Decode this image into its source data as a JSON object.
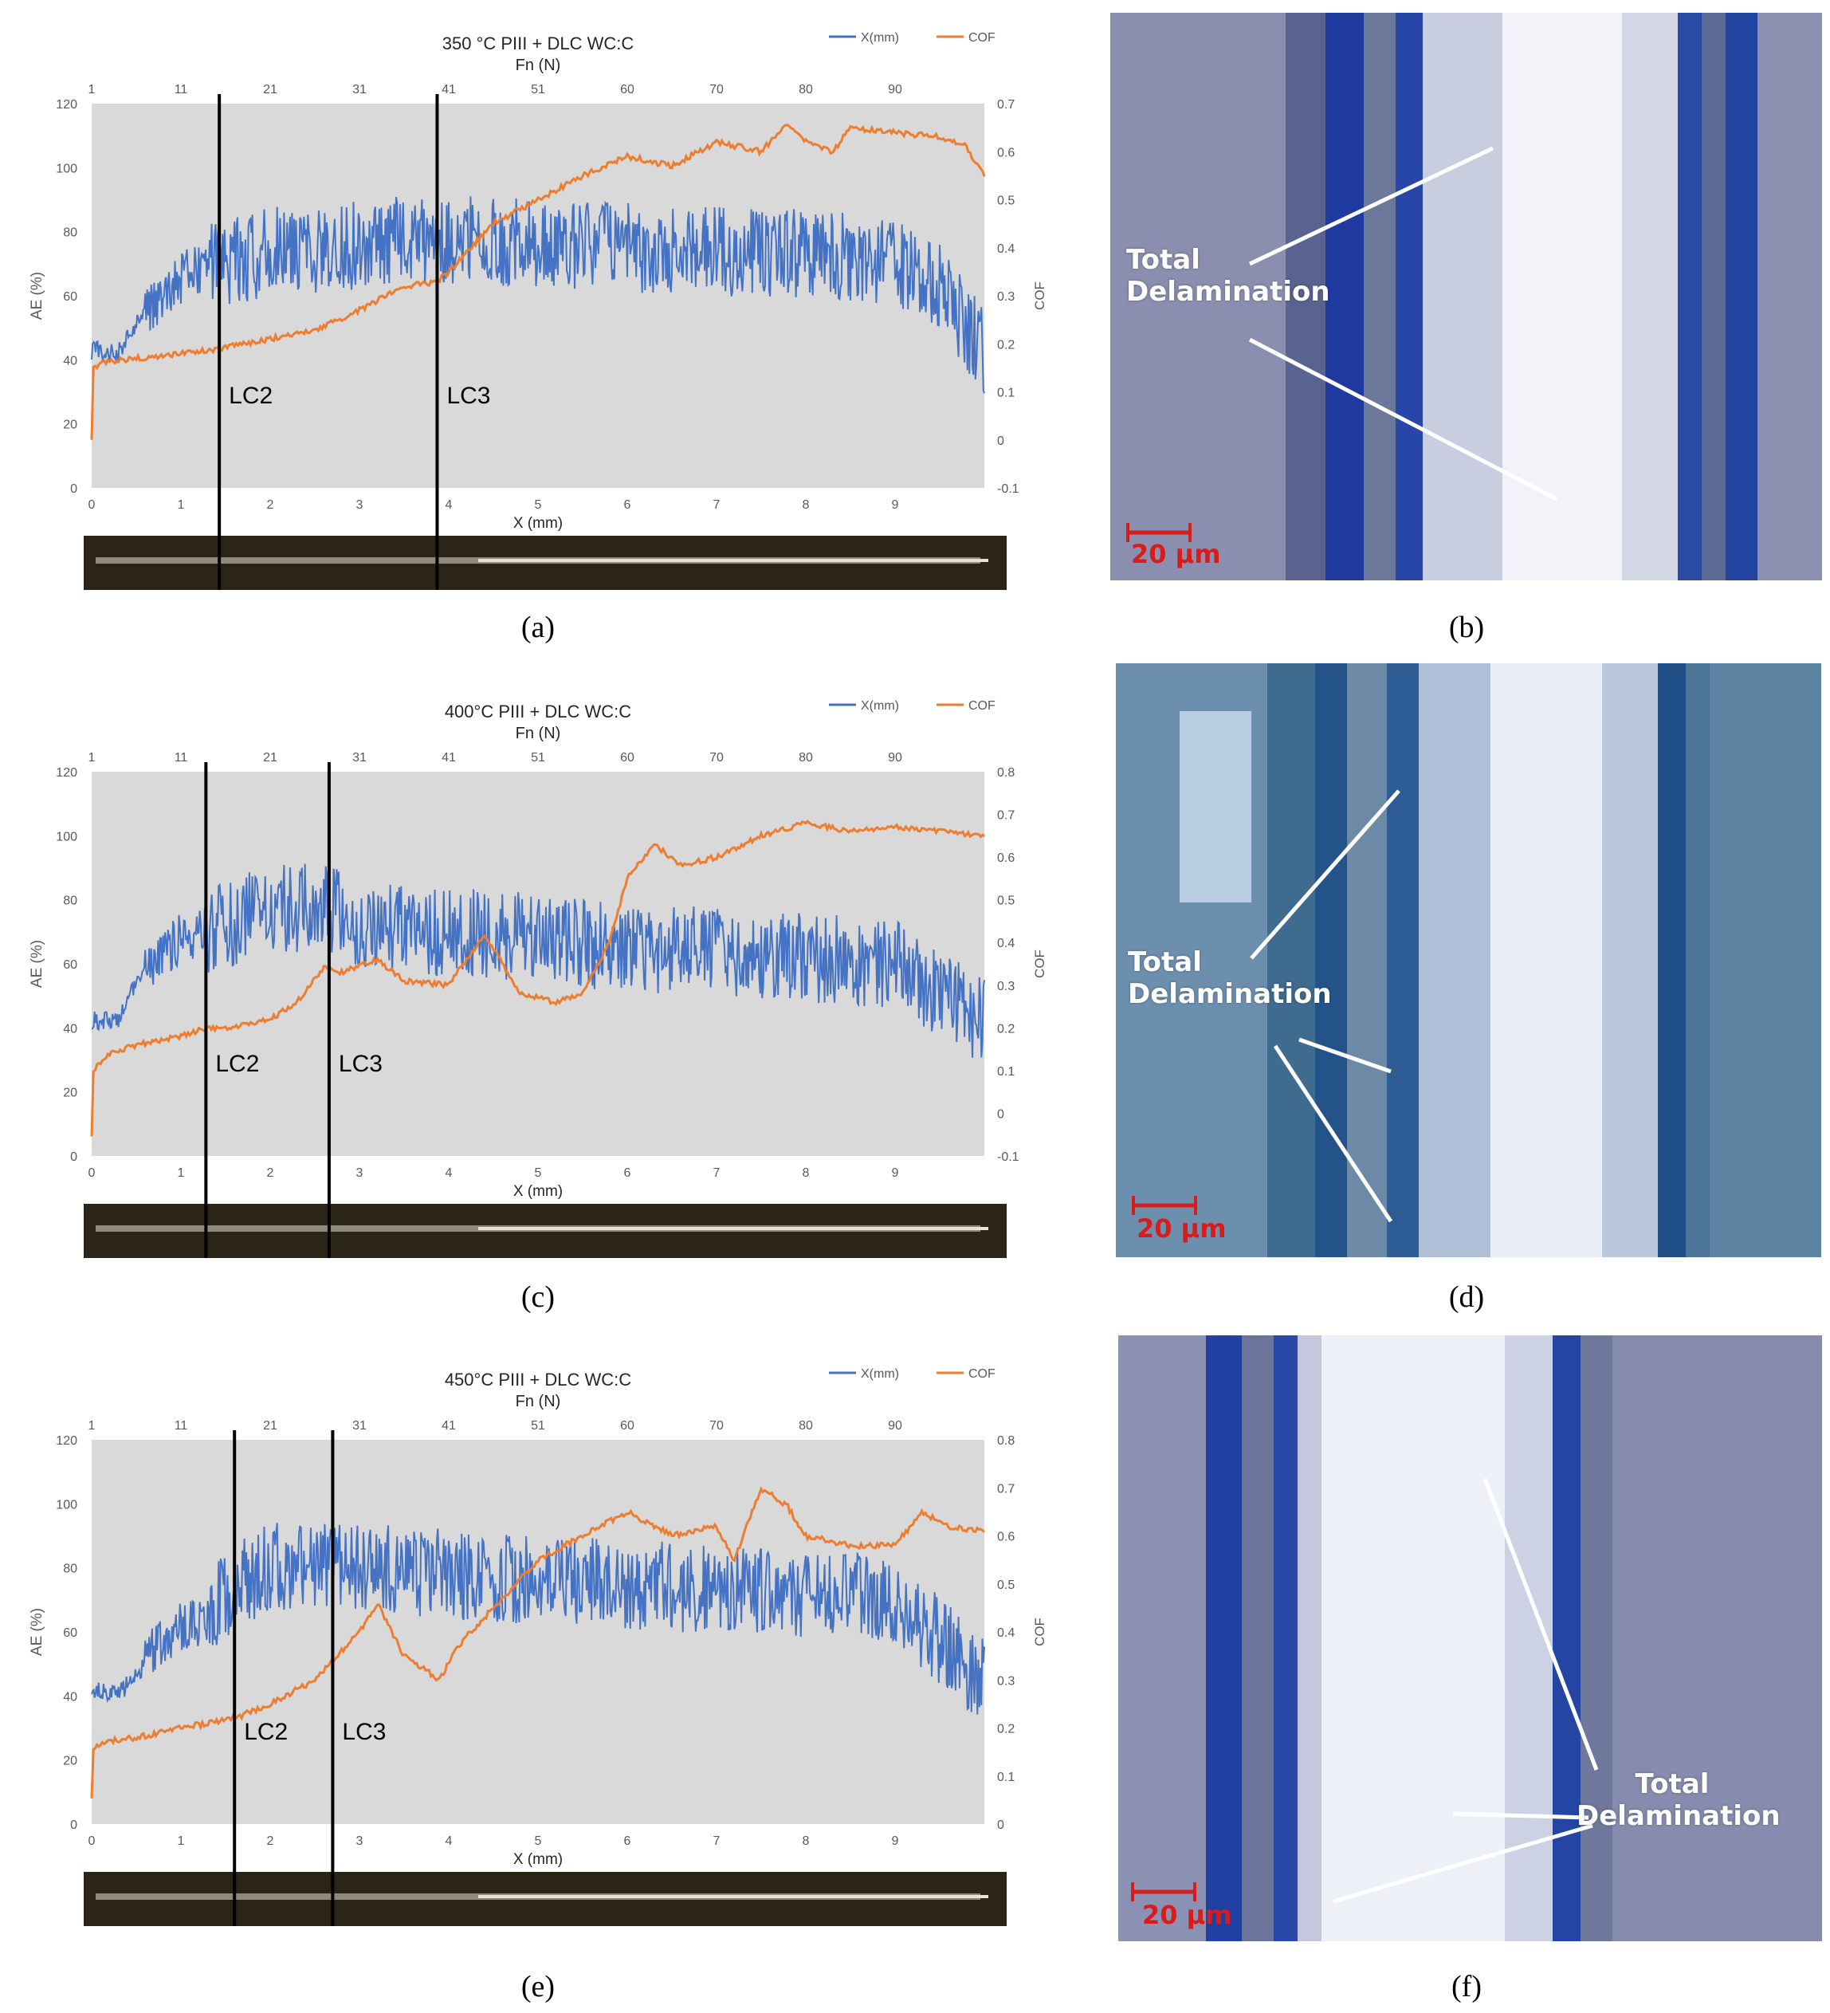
{
  "colors": {
    "ae": "#4472c4",
    "cof": "#ed7d31",
    "plot_bg": "#d9d9d9",
    "lc_line": "#000000",
    "overlay": "#ffffff",
    "scale_bar": "#d81b1b"
  },
  "chart_data": [
    {
      "id": "a",
      "type": "line",
      "title": "350 °C PIII + DLC WC:C",
      "top_axis_label": "Fn (N)",
      "top_ticks": [
        "1",
        "11",
        "21",
        "31",
        "41",
        "51",
        "60",
        "70",
        "80",
        "90"
      ],
      "xlabel": "X (mm)",
      "ylabel": "AE (%)",
      "y2label": "COF",
      "xlim": [
        0,
        10
      ],
      "ylim": [
        0,
        120
      ],
      "y2lim": [
        -0.1,
        0.7
      ],
      "x_ticks": [
        "0",
        "1",
        "2",
        "3",
        "4",
        "5",
        "6",
        "7",
        "8",
        "9"
      ],
      "y_ticks": [
        "0",
        "20",
        "40",
        "60",
        "80",
        "100",
        "120"
      ],
      "y2_ticks": [
        "-0.1",
        "0",
        "0.1",
        "0.2",
        "0.3",
        "0.4",
        "0.5",
        "0.6",
        "0.7"
      ],
      "legend": [
        "X(mm)",
        "COF"
      ],
      "legend_position": "top-right",
      "markers": [
        {
          "name": "LC2",
          "x": 1.43
        },
        {
          "name": "LC3",
          "x": 3.87
        }
      ],
      "series": [
        {
          "name": "X(mm)",
          "axis": "left",
          "x": [
            0,
            0.3,
            0.5,
            0.8,
            1.1,
            1.43,
            2.0,
            3.0,
            3.87,
            5.0,
            6.0,
            7.0,
            8.0,
            9.0,
            9.5,
            10.0
          ],
          "values": [
            43,
            42,
            52,
            60,
            68,
            70,
            74,
            76,
            78,
            76,
            75,
            74,
            73,
            71,
            64,
            42
          ]
        },
        {
          "name": "COF",
          "axis": "right",
          "x": [
            0,
            0.02,
            0.1,
            0.5,
            1.0,
            1.43,
            2.0,
            2.5,
            3.0,
            3.5,
            3.87,
            4.0,
            4.5,
            5.0,
            5.5,
            6.0,
            6.5,
            7.0,
            7.5,
            7.8,
            8.0,
            8.3,
            8.5,
            9.0,
            9.5,
            9.8,
            10.0
          ],
          "values": [
            0.0,
            0.15,
            0.16,
            0.17,
            0.18,
            0.19,
            0.21,
            0.23,
            0.27,
            0.32,
            0.33,
            0.35,
            0.45,
            0.5,
            0.55,
            0.59,
            0.57,
            0.62,
            0.6,
            0.66,
            0.62,
            0.6,
            0.65,
            0.64,
            0.63,
            0.61,
            0.55
          ]
        }
      ]
    },
    {
      "id": "c",
      "type": "line",
      "title": "400°C PIII + DLC WC:C",
      "top_axis_label": "Fn (N)",
      "top_ticks": [
        "1",
        "11",
        "21",
        "31",
        "41",
        "51",
        "60",
        "70",
        "80",
        "90"
      ],
      "xlabel": "X (mm)",
      "ylabel": "AE (%)",
      "y2label": "COF",
      "xlim": [
        0,
        10
      ],
      "ylim": [
        0,
        120
      ],
      "y2lim": [
        -0.1,
        0.8
      ],
      "x_ticks": [
        "0",
        "1",
        "2",
        "3",
        "4",
        "5",
        "6",
        "7",
        "8",
        "9"
      ],
      "y_ticks": [
        "0",
        "20",
        "40",
        "60",
        "80",
        "100",
        "120"
      ],
      "y2_ticks": [
        "-0.1",
        "0",
        "0.1",
        "0.2",
        "0.3",
        "0.4",
        "0.5",
        "0.6",
        "0.7",
        "0.8"
      ],
      "legend": [
        "X(mm)",
        "COF"
      ],
      "legend_position": "top-right",
      "markers": [
        {
          "name": "LC2",
          "x": 1.28
        },
        {
          "name": "LC3",
          "x": 2.66
        }
      ],
      "series": [
        {
          "name": "X(mm)",
          "axis": "left",
          "x": [
            0,
            0.3,
            0.5,
            0.8,
            1.0,
            1.28,
            2.0,
            2.66,
            3.0,
            4.0,
            5.0,
            6.0,
            7.0,
            8.0,
            9.0,
            10.0
          ],
          "values": [
            42,
            43,
            55,
            63,
            68,
            70,
            78,
            77,
            72,
            70,
            68,
            65,
            64,
            62,
            60,
            42
          ]
        },
        {
          "name": "COF",
          "axis": "right",
          "x": [
            0,
            0.02,
            0.2,
            0.5,
            1.0,
            1.28,
            1.5,
            2.0,
            2.3,
            2.6,
            2.8,
            3.2,
            3.5,
            4.0,
            4.4,
            4.8,
            5.2,
            5.5,
            5.8,
            6.0,
            6.3,
            6.6,
            7.0,
            7.5,
            8.0,
            8.5,
            9.0,
            9.5,
            10.0
          ],
          "values": [
            -0.05,
            0.1,
            0.14,
            0.16,
            0.18,
            0.2,
            0.2,
            0.22,
            0.26,
            0.34,
            0.33,
            0.36,
            0.31,
            0.3,
            0.42,
            0.28,
            0.26,
            0.28,
            0.4,
            0.55,
            0.63,
            0.58,
            0.6,
            0.65,
            0.68,
            0.66,
            0.67,
            0.66,
            0.65
          ]
        }
      ]
    },
    {
      "id": "e",
      "type": "line",
      "title": "450°C PIII + DLC WC:C",
      "top_axis_label": "Fn (N)",
      "top_ticks": [
        "1",
        "11",
        "21",
        "31",
        "41",
        "51",
        "60",
        "70",
        "80",
        "90"
      ],
      "xlabel": "X (mm)",
      "ylabel": "AE (%)",
      "y2label": "COF",
      "xlim": [
        0,
        10
      ],
      "ylim": [
        0,
        120
      ],
      "y2lim": [
        0,
        0.8
      ],
      "x_ticks": [
        "0",
        "1",
        "2",
        "3",
        "4",
        "5",
        "6",
        "7",
        "8",
        "9"
      ],
      "y_ticks": [
        "0",
        "20",
        "40",
        "60",
        "80",
        "100",
        "120"
      ],
      "y2_ticks": [
        "0",
        "0.1",
        "0.2",
        "0.3",
        "0.4",
        "0.5",
        "0.6",
        "0.7",
        "0.8"
      ],
      "legend": [
        "X(mm)",
        "COF"
      ],
      "legend_position": "top-right",
      "markers": [
        {
          "name": "LC2",
          "x": 1.6
        },
        {
          "name": "LC3",
          "x": 2.7
        }
      ],
      "series": [
        {
          "name": "X(mm)",
          "axis": "left",
          "x": [
            0,
            0.3,
            0.5,
            0.8,
            1.0,
            1.3,
            1.6,
            2.0,
            2.7,
            3.0,
            4.0,
            5.0,
            6.0,
            7.0,
            8.0,
            9.0,
            10.0
          ],
          "values": [
            42,
            41,
            46,
            58,
            62,
            64,
            75,
            80,
            82,
            80,
            78,
            76,
            75,
            73,
            72,
            70,
            45
          ]
        },
        {
          "name": "COF",
          "axis": "right",
          "x": [
            0,
            0.02,
            0.1,
            0.5,
            1.0,
            1.6,
            2.0,
            2.5,
            2.7,
            3.0,
            3.2,
            3.5,
            3.9,
            4.1,
            4.5,
            5.0,
            5.5,
            6.0,
            6.5,
            7.0,
            7.2,
            7.5,
            7.8,
            8.0,
            8.5,
            9.0,
            9.3,
            9.6,
            10.0
          ],
          "values": [
            0.05,
            0.15,
            0.17,
            0.18,
            0.2,
            0.22,
            0.25,
            0.3,
            0.34,
            0.4,
            0.46,
            0.35,
            0.3,
            0.37,
            0.45,
            0.55,
            0.6,
            0.65,
            0.6,
            0.62,
            0.55,
            0.7,
            0.66,
            0.6,
            0.58,
            0.58,
            0.65,
            0.62,
            0.61
          ]
        }
      ]
    }
  ],
  "captions": [
    "(a)",
    "(b)",
    "(c)",
    "(d)",
    "(e)",
    "(f)"
  ],
  "micrographs": [
    {
      "id": "b",
      "annotation": "Total Delamination",
      "scale": "20 μm"
    },
    {
      "id": "d",
      "annotation": "Total Delamination",
      "scale": "20 μm"
    },
    {
      "id": "f",
      "annotation": "Total Delamination",
      "scale": "20 μm"
    }
  ]
}
